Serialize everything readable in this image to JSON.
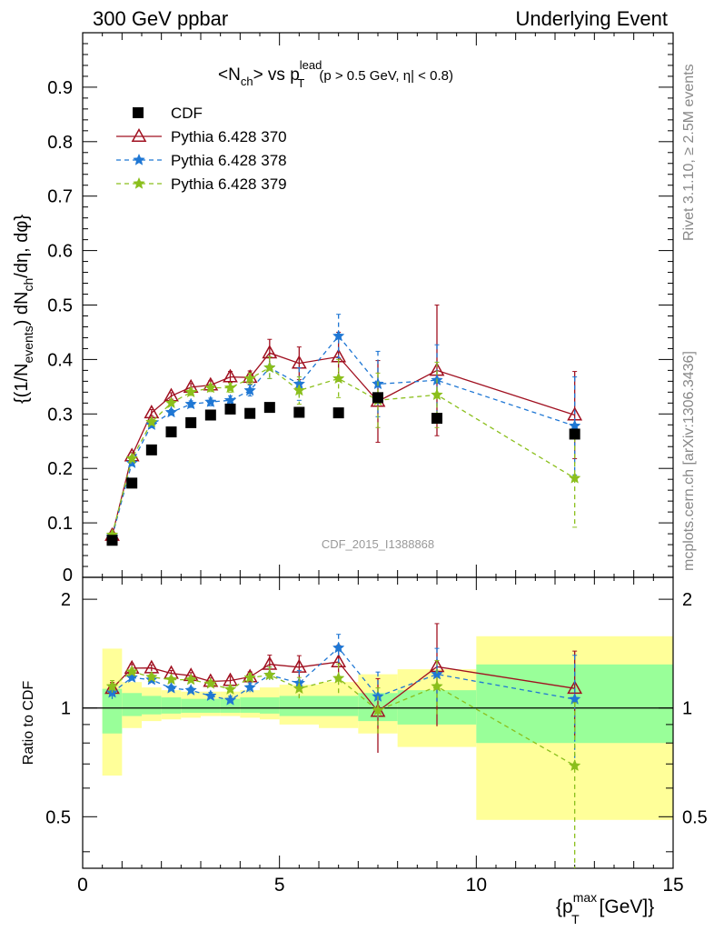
{
  "header": {
    "left": "300 GeV ppbar",
    "right": "Underlying Event"
  },
  "side_text": {
    "rivet": "Rivet 3.1.10, ≥ 2.5M events",
    "mcplots": "mcplots.cern.ch [arXiv:1306.3436]"
  },
  "analysis_label": "CDF_2015_I1388868",
  "chart_data": {
    "type": "scatter",
    "title_parts": {
      "n": "<N",
      "ch": "ch",
      "vs": "> vs p",
      "sup": "lead",
      "T": "T",
      "cut_a": "(p",
      "cut_b": " > 0.5 GeV, ",
      "eta": "η",
      "cut_c": "| < 0.8)"
    },
    "ylabel": "{(1/N_events) dN_ch/dη, dφ}",
    "ylabel_parts": {
      "a": "{(1/N",
      "sub1": "events",
      "b": ") dN",
      "sub2": "ch",
      "c": "/dη, dφ}"
    },
    "xlabel_parts": {
      "a": "{p",
      "sup": "max",
      "sub": "T",
      "b": " [GeV]}"
    },
    "ratio_ylabel": "Ratio to CDF",
    "xlim": [
      0,
      15
    ],
    "ylim": [
      0,
      1.0
    ],
    "ratio_ylim": [
      0.36,
      2.3
    ],
    "x_ticks": [
      "0",
      "5",
      "10",
      "15"
    ],
    "y_ticks": [
      "0.1",
      "0.2",
      "0.3",
      "0.4",
      "0.5",
      "0.6",
      "0.7",
      "0.8",
      "0.9"
    ],
    "y_zero_label": "0",
    "ratio_ticks": [
      "0.5",
      "1",
      "2"
    ],
    "legend_position": "top-left",
    "cdf": {
      "name": "CDF",
      "color": "#000000",
      "x": [
        0.75,
        1.25,
        1.75,
        2.25,
        2.75,
        3.25,
        3.75,
        4.25,
        4.75,
        5.5,
        6.5,
        7.5,
        9.0,
        12.5
      ],
      "y": [
        0.068,
        0.173,
        0.234,
        0.267,
        0.284,
        0.298,
        0.309,
        0.301,
        0.312,
        0.303,
        0.302,
        0.33,
        0.292,
        0.263
      ],
      "xlo": [
        0.5,
        1.0,
        1.5,
        2.0,
        2.5,
        3.0,
        3.5,
        4.0,
        4.5,
        5.0,
        6.0,
        7.0,
        8.0,
        10.0
      ],
      "xhi": [
        1.0,
        1.5,
        2.0,
        2.5,
        3.0,
        3.5,
        4.0,
        4.5,
        5.0,
        6.0,
        7.0,
        8.0,
        10.0,
        15.0
      ],
      "band_stat_lo": [
        0.85,
        0.95,
        0.96,
        0.965,
        0.97,
        0.97,
        0.97,
        0.97,
        0.965,
        0.95,
        0.95,
        0.92,
        0.9,
        0.8
      ],
      "band_stat_hi": [
        1.13,
        1.1,
        1.08,
        1.07,
        1.06,
        1.06,
        1.06,
        1.07,
        1.07,
        1.08,
        1.08,
        1.1,
        1.12,
        1.32
      ],
      "band_tot_lo": [
        0.65,
        0.88,
        0.92,
        0.93,
        0.94,
        0.95,
        0.95,
        0.94,
        0.93,
        0.9,
        0.88,
        0.85,
        0.78,
        0.49
      ],
      "band_tot_hi": [
        1.46,
        1.18,
        1.14,
        1.12,
        1.11,
        1.11,
        1.11,
        1.12,
        1.14,
        1.16,
        1.18,
        1.24,
        1.28,
        1.58
      ]
    },
    "series": [
      {
        "name": "Pythia 6.428 370",
        "color": "#a01020",
        "marker": "triangle-open",
        "line": "solid",
        "x": [
          0.75,
          1.25,
          1.75,
          2.25,
          2.75,
          3.25,
          3.75,
          4.25,
          4.75,
          5.5,
          6.5,
          7.5,
          9.0,
          12.5
        ],
        "y": [
          0.077,
          0.223,
          0.302,
          0.333,
          0.349,
          0.353,
          0.368,
          0.367,
          0.412,
          0.393,
          0.405,
          0.323,
          0.38,
          0.298
        ],
        "err": [
          0.003,
          0.006,
          0.006,
          0.006,
          0.007,
          0.008,
          0.01,
          0.012,
          0.025,
          0.03,
          0.045,
          0.075,
          0.12,
          0.08
        ]
      },
      {
        "name": "Pythia 6.428 378",
        "color": "#1f77d4",
        "marker": "star",
        "line": "dashed",
        "x": [
          0.75,
          1.25,
          1.75,
          2.25,
          2.75,
          3.25,
          3.75,
          4.25,
          4.75,
          5.5,
          6.5,
          7.5,
          9.0,
          12.5
        ],
        "y": [
          0.075,
          0.21,
          0.28,
          0.303,
          0.318,
          0.322,
          0.325,
          0.343,
          0.385,
          0.355,
          0.443,
          0.355,
          0.362,
          0.278
        ],
        "err": [
          0.003,
          0.005,
          0.005,
          0.005,
          0.006,
          0.007,
          0.008,
          0.01,
          0.02,
          0.03,
          0.04,
          0.06,
          0.065,
          0.09
        ]
      },
      {
        "name": "Pythia 6.428 379",
        "color": "#8bbf1c",
        "marker": "star",
        "line": "dashed",
        "x": [
          0.75,
          1.25,
          1.75,
          2.25,
          2.75,
          3.25,
          3.75,
          4.25,
          4.75,
          5.5,
          6.5,
          7.5,
          9.0,
          12.5
        ],
        "y": [
          0.078,
          0.218,
          0.285,
          0.32,
          0.34,
          0.348,
          0.348,
          0.365,
          0.385,
          0.343,
          0.365,
          0.325,
          0.335,
          0.182
        ],
        "err": [
          0.003,
          0.005,
          0.005,
          0.005,
          0.006,
          0.007,
          0.008,
          0.01,
          0.02,
          0.025,
          0.035,
          0.05,
          0.06,
          0.09
        ]
      }
    ]
  }
}
